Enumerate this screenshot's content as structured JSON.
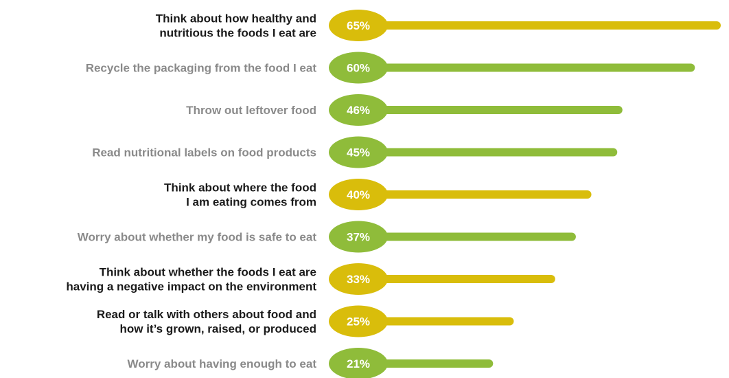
{
  "colors": {
    "highlight_bar": "#d9bd0b",
    "normal_bar": "#8fbc3a",
    "highlight_text": "#1a1a1a",
    "normal_text": "#8a8a8a"
  },
  "chart_data": {
    "type": "bar",
    "orientation": "horizontal",
    "unit": "%",
    "xlim": [
      0,
      65
    ],
    "grid": false,
    "legend": "none",
    "categories": [
      [
        "Think about how healthy and",
        "nutritious the foods I eat are"
      ],
      [
        "Recycle the packaging from the food I eat"
      ],
      [
        "Throw out leftover food"
      ],
      [
        "Read nutritional labels on food products"
      ],
      [
        "Think about where the food",
        "I am eating comes from"
      ],
      [
        "Worry about whether my food is safe to eat"
      ],
      [
        "Think about whether the foods I eat are",
        "having a negative impact on the environment"
      ],
      [
        "Read or talk with others about food and",
        "how it’s grown, raised, or produced"
      ],
      [
        "Worry about having enough to eat"
      ]
    ],
    "values": [
      65,
      60,
      46,
      45,
      40,
      37,
      33,
      25,
      21
    ],
    "value_labels": [
      "65%",
      "60%",
      "46%",
      "45%",
      "40%",
      "37%",
      "33%",
      "25%",
      "21%"
    ],
    "highlighted": [
      true,
      false,
      false,
      false,
      true,
      false,
      true,
      true,
      false
    ]
  }
}
